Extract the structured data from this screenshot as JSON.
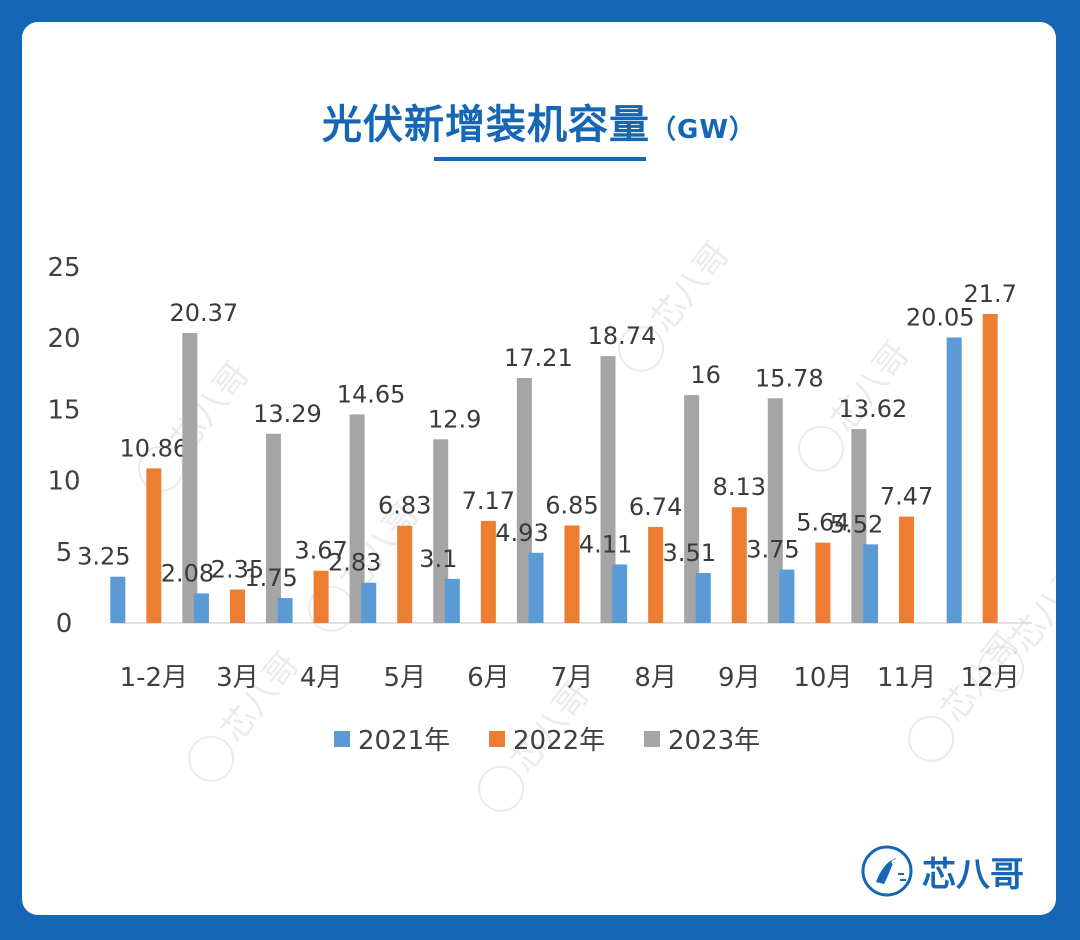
{
  "header": {
    "title": "光伏新增装机容量",
    "unit": "（GW）"
  },
  "logo": {
    "text": "芯八哥"
  },
  "watermark": {
    "text": "芯八哥"
  },
  "colors": {
    "background": "#1566b4",
    "accent": "#1566b4",
    "s2021": "#5b9bd5",
    "s2022": "#ed7d31",
    "s2023": "#a5a5a5"
  },
  "chart_data": {
    "type": "bar",
    "title": "光伏新增装机容量（GW）",
    "xlabel": "",
    "ylabel": "",
    "categories": [
      "1-2月",
      "3月",
      "4月",
      "5月",
      "6月",
      "7月",
      "8月",
      "9月",
      "10月",
      "11月",
      "12月"
    ],
    "yticks": [
      "0",
      "5",
      "10",
      "15",
      "20",
      "25"
    ],
    "ylim": [
      0,
      25
    ],
    "grid": false,
    "legend_position": "bottom",
    "series": [
      {
        "name": "2021年",
        "values": [
          3.25,
          2.08,
          1.75,
          2.83,
          3.1,
          4.93,
          4.11,
          3.51,
          3.75,
          5.52,
          20.05
        ]
      },
      {
        "name": "2022年",
        "values": [
          10.86,
          2.35,
          3.67,
          6.83,
          7.17,
          6.85,
          6.74,
          8.13,
          5.64,
          7.47,
          21.7
        ]
      },
      {
        "name": "2023年",
        "values": [
          20.37,
          13.29,
          14.65,
          12.9,
          17.21,
          18.74,
          16,
          15.78,
          13.62,
          null,
          null
        ]
      }
    ]
  }
}
